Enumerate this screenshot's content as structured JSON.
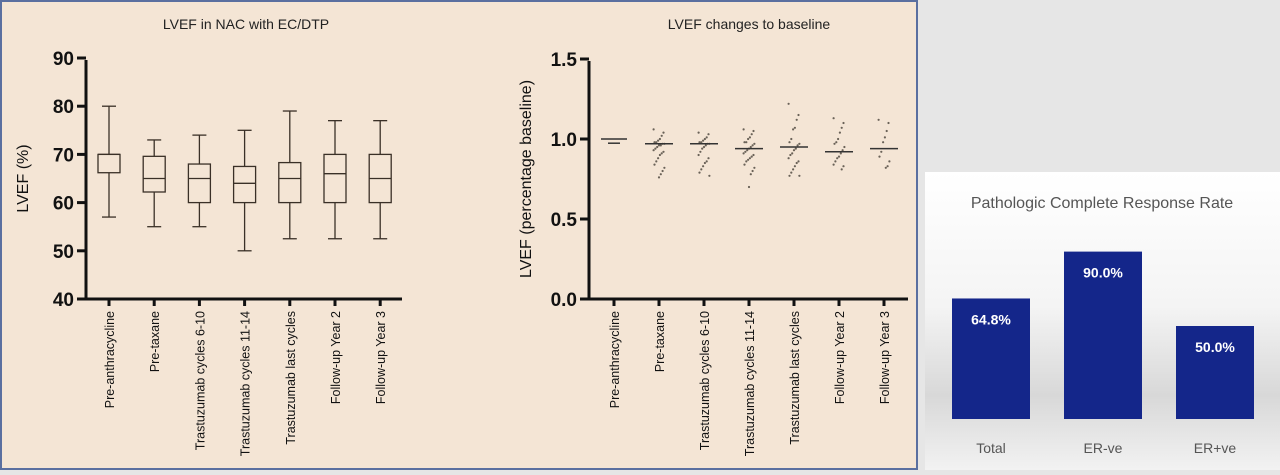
{
  "chart_data": [
    {
      "type": "box",
      "title": "LVEF in NAC with EC/DTP",
      "ylabel": "LVEF (%)",
      "ylim": [
        40,
        90
      ],
      "yticks": [
        40,
        50,
        60,
        70,
        80,
        90
      ],
      "grid": false,
      "categories": [
        "Pre-anthracycline",
        "Pre-taxane",
        "Trastuzumab cycles 6-10",
        "Trastuzumab cycles 11-14",
        "Trastuzumab last cycles",
        "Follow-up Year 2",
        "Follow-up Year 3"
      ],
      "boxes": [
        {
          "min": 57,
          "q1": 66.2,
          "median": 70,
          "q3": 70,
          "max": 80
        },
        {
          "min": 55,
          "q1": 62.2,
          "median": 65,
          "q3": 69.6,
          "max": 73
        },
        {
          "min": 55,
          "q1": 60,
          "median": 65,
          "q3": 68,
          "max": 74
        },
        {
          "min": 50,
          "q1": 60,
          "median": 64,
          "q3": 67.5,
          "max": 75
        },
        {
          "min": 52.5,
          "q1": 60,
          "median": 65,
          "q3": 68.3,
          "max": 79
        },
        {
          "min": 52.5,
          "q1": 60,
          "median": 66,
          "q3": 70,
          "max": 77
        },
        {
          "min": 52.5,
          "q1": 60,
          "median": 65,
          "q3": 70,
          "max": 77
        }
      ]
    },
    {
      "type": "scatter",
      "title": "LVEF changes to baseline",
      "ylabel": "LVEF (percentage  baseline)",
      "ylim": [
        0,
        1.5
      ],
      "yticks": [
        "0.0",
        "0.5",
        "1.0",
        "1.5"
      ],
      "grid": false,
      "categories": [
        "Pre-anthracycline",
        "Pre-taxane",
        "Trastuzumab cycles 6-10",
        "Trastuzumab cycles 11-14",
        "Trastuzumab last cycles",
        "Follow-up Year 2",
        "Follow-up Year 3"
      ],
      "medians": [
        1.0,
        0.97,
        0.97,
        0.94,
        0.95,
        0.92,
        0.94
      ],
      "points": [
        [
          1.0,
          0.98
        ],
        [
          1.06,
          1.04,
          1.02,
          1.0,
          0.99,
          0.98,
          0.98,
          0.97,
          0.97,
          0.96,
          0.96,
          0.95,
          0.94,
          0.93,
          0.92,
          0.91,
          0.9,
          0.88,
          0.86,
          0.84,
          0.82,
          0.8,
          0.78,
          0.76
        ],
        [
          1.04,
          1.03,
          1.01,
          1.0,
          0.99,
          0.98,
          0.98,
          0.97,
          0.97,
          0.96,
          0.95,
          0.94,
          0.92,
          0.9,
          0.88,
          0.86,
          0.85,
          0.83,
          0.81,
          0.79,
          0.77
        ],
        [
          1.06,
          1.05,
          1.03,
          1.01,
          1.0,
          0.98,
          0.98,
          0.97,
          0.96,
          0.95,
          0.94,
          0.93,
          0.92,
          0.91,
          0.9,
          0.89,
          0.88,
          0.87,
          0.86,
          0.84,
          0.82,
          0.8,
          0.78,
          0.7
        ],
        [
          1.22,
          1.15,
          1.12,
          1.07,
          1.06,
          1.0,
          0.98,
          0.97,
          0.96,
          0.94,
          0.93,
          0.91,
          0.9,
          0.88,
          0.86,
          0.85,
          0.83,
          0.81,
          0.79,
          0.77,
          0.77
        ],
        [
          1.13,
          1.1,
          1.07,
          1.04,
          1.0,
          0.98,
          0.97,
          0.95,
          0.93,
          0.91,
          0.89,
          0.88,
          0.86,
          0.84,
          0.83,
          0.81
        ],
        [
          1.12,
          1.1,
          1.05,
          1.01,
          0.98,
          0.92,
          0.89,
          0.86,
          0.83,
          0.82
        ]
      ]
    },
    {
      "type": "bar",
      "title": "Pathologic Complete Response Rate",
      "categories": [
        "Total",
        "ER-ve",
        "ER+ve"
      ],
      "values": [
        64.8,
        90.0,
        50.0
      ],
      "labels": [
        "64.8%",
        "90.0%",
        "50.0%"
      ],
      "color": "#14268a"
    }
  ]
}
